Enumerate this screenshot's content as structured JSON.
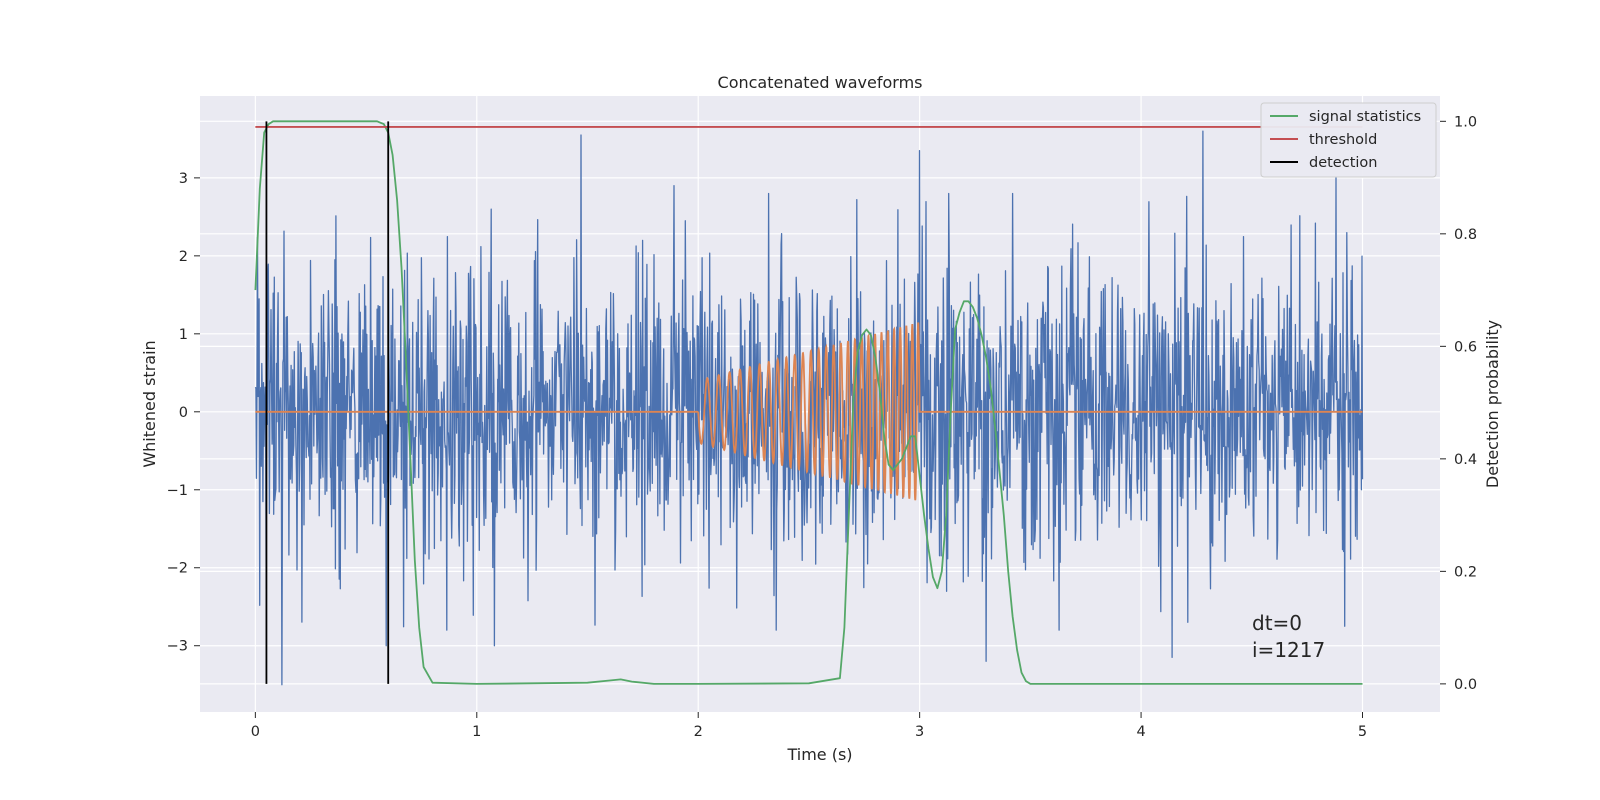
{
  "chart_data": {
    "type": "line",
    "title": "Concatenated waveforms",
    "xlabel": "Time (s)",
    "ylabel": "Whitened strain",
    "y2label": "Detection probability",
    "xlim": [
      -0.25,
      5.35
    ],
    "ylim": [
      -3.85,
      4.05
    ],
    "y2lim": [
      -0.05,
      1.045
    ],
    "x_ticks": [
      0,
      1,
      2,
      3,
      4,
      5
    ],
    "y_ticks": [
      -3,
      -2,
      -1,
      0,
      1,
      2,
      3
    ],
    "y2_ticks": [
      0.0,
      0.2,
      0.4,
      0.6,
      0.8,
      1.0
    ],
    "x_tick_labels": [
      "0",
      "1",
      "2",
      "3",
      "4",
      "5"
    ],
    "y_tick_labels": [
      "−3",
      "−2",
      "−1",
      "0",
      "1",
      "2",
      "3"
    ],
    "y2_tick_labels": [
      "0.0",
      "0.2",
      "0.4",
      "0.6",
      "0.8",
      "1.0"
    ],
    "grid": true,
    "legend_position": "top-right",
    "colors": {
      "background": "#eaeaf2",
      "grid": "#ffffff",
      "strain": "#4c72b0",
      "injected": "#dd8452",
      "signal": "#55a868",
      "threshold": "#c44e52",
      "detection": "#000000"
    },
    "series": [
      {
        "name": "strain",
        "axis": "left",
        "description_x_range": [
          0,
          5
        ],
        "samples": 2048,
        "std": 0.9,
        "peaks": [
          [
            0.12,
            -3.5
          ],
          [
            0.59,
            -3.0
          ],
          [
            1.47,
            3.55
          ],
          [
            1.89,
            2.9
          ],
          [
            3.0,
            3.35
          ],
          [
            3.3,
            -3.2
          ],
          [
            4.28,
            3.6
          ],
          [
            4.14,
            -3.15
          ],
          [
            4.88,
            3.0
          ],
          [
            4.92,
            -2.75
          ],
          [
            1.08,
            -3.0
          ]
        ]
      },
      {
        "name": "injected waveform",
        "axis": "left",
        "x": [
          0,
          2,
          2.0,
          3.0,
          3.0,
          5
        ],
        "y": [
          0,
          0,
          0.4,
          1.15,
          0,
          0
        ],
        "chirp_start": 2.0,
        "chirp_end": 3.0,
        "chirp_amp_start": 0.4,
        "chirp_amp_end": 1.15
      },
      {
        "name": "signal statistics",
        "axis": "right",
        "x": [
          0,
          0.02,
          0.04,
          0.06,
          0.08,
          0.1,
          0.15,
          0.3,
          0.5,
          0.55,
          0.58,
          0.6,
          0.62,
          0.64,
          0.66,
          0.68,
          0.7,
          0.72,
          0.74,
          0.76,
          0.8,
          1.0,
          1.5,
          1.6,
          1.65,
          1.7,
          1.8,
          2.0,
          2.5,
          2.64,
          2.66,
          2.68,
          2.7,
          2.72,
          2.74,
          2.76,
          2.78,
          2.8,
          2.82,
          2.84,
          2.86,
          2.88,
          2.9,
          2.92,
          2.94,
          2.96,
          2.98,
          3.0,
          3.02,
          3.04,
          3.06,
          3.08,
          3.1,
          3.12,
          3.14,
          3.16,
          3.18,
          3.2,
          3.22,
          3.24,
          3.26,
          3.28,
          3.3,
          3.32,
          3.34,
          3.36,
          3.38,
          3.4,
          3.42,
          3.44,
          3.46,
          3.48,
          3.5,
          3.55,
          4.0,
          5.0
        ],
        "y": [
          0.7,
          0.88,
          0.98,
          0.995,
          1.0,
          1.0,
          1.0,
          1.0,
          1.0,
          1.0,
          0.995,
          0.98,
          0.94,
          0.86,
          0.74,
          0.58,
          0.4,
          0.22,
          0.1,
          0.03,
          0.002,
          0.0,
          0.002,
          0.006,
          0.008,
          0.004,
          0.0,
          0.0,
          0.001,
          0.01,
          0.1,
          0.3,
          0.5,
          0.59,
          0.62,
          0.63,
          0.62,
          0.58,
          0.52,
          0.44,
          0.39,
          0.38,
          0.39,
          0.4,
          0.42,
          0.44,
          0.44,
          0.37,
          0.3,
          0.24,
          0.19,
          0.17,
          0.2,
          0.3,
          0.48,
          0.63,
          0.66,
          0.68,
          0.68,
          0.67,
          0.65,
          0.62,
          0.58,
          0.53,
          0.46,
          0.38,
          0.3,
          0.2,
          0.12,
          0.06,
          0.02,
          0.005,
          0.0,
          0.0,
          0.0,
          0.0
        ]
      },
      {
        "name": "threshold",
        "axis": "right",
        "x": [
          0,
          5
        ],
        "y": [
          0.99,
          0.99
        ]
      },
      {
        "name": "detection",
        "axis": "right",
        "x": [
          0.05,
          0.6
        ],
        "y_range": [
          0,
          1.0
        ]
      }
    ],
    "legend": [
      "signal statistics",
      "threshold",
      "detection"
    ],
    "annotation": {
      "line1": "dt=0",
      "line2": "i=1217"
    }
  }
}
